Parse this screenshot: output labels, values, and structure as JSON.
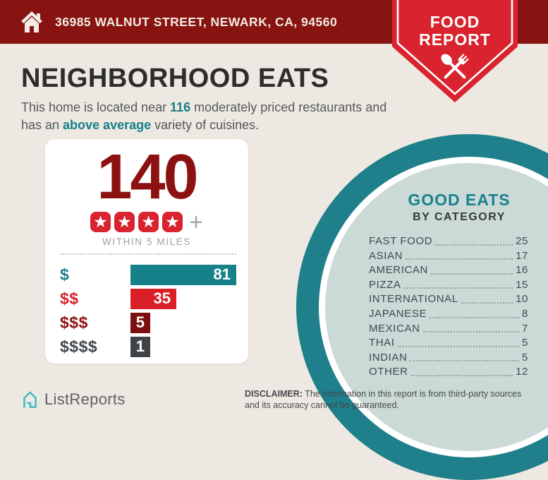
{
  "banner": {
    "address": "36985 WALNUT STREET, NEWARK, CA, 94560"
  },
  "badge": {
    "line1": "FOOD",
    "line2": "REPORT"
  },
  "headline": {
    "title": "NEIGHBORHOOD EATS",
    "intro_prefix": "This home is located near ",
    "count": "116",
    "intro_mid": " moderately priced restaurants and has an ",
    "highlight": "above average",
    "intro_suffix": " variety of cuisines."
  },
  "summary_card": {
    "rating_stars": 4,
    "plus_label": "+"
  },
  "chart_data": [
    {
      "type": "bar",
      "orientation": "horizontal",
      "title": "140",
      "subtitle": "WITHIN 5 MILES",
      "categories": [
        "$",
        "$$",
        "$$$",
        "$$$$"
      ],
      "values": [
        81,
        35,
        5,
        1
      ],
      "colors": [
        "#17818A",
        "#DA1F26",
        "#7D0F12",
        "#3D4347"
      ],
      "label_colors": [
        "#1F808A",
        "#D9232E",
        "#8C1211",
        "#42484C"
      ],
      "value_label_position": "inside-end",
      "xlim": [
        0,
        81
      ],
      "grid": false,
      "legend": false
    },
    {
      "type": "table",
      "title": "GOOD EATS",
      "subtitle": "BY CATEGORY",
      "categories": [
        "FAST FOOD",
        "ASIAN",
        "AMERICAN",
        "PIZZA",
        "INTERNATIONAL",
        "JAPANESE",
        "MEXICAN",
        "THAI",
        "INDIAN",
        "OTHER"
      ],
      "values": [
        25,
        17,
        16,
        15,
        10,
        8,
        7,
        5,
        5,
        12
      ]
    }
  ],
  "footer": {
    "brand": "ListReports",
    "disclaimer_label": "DISCLAIMER:",
    "disclaimer_text": " The information in this report is from third-party sources and its accuracy cannot be guaranteed."
  },
  "colors": {
    "page_background": "#EDE8E1",
    "banner_dark_red": "#871410",
    "badge_red": "#D9232E",
    "accent_teal": "#1F7F8A",
    "circle_inner_teal": "#CBDAD6",
    "number_dark_red": "#8C1211",
    "logo_teal": "#35B8C4",
    "text_dark": "#2D2D2D"
  }
}
